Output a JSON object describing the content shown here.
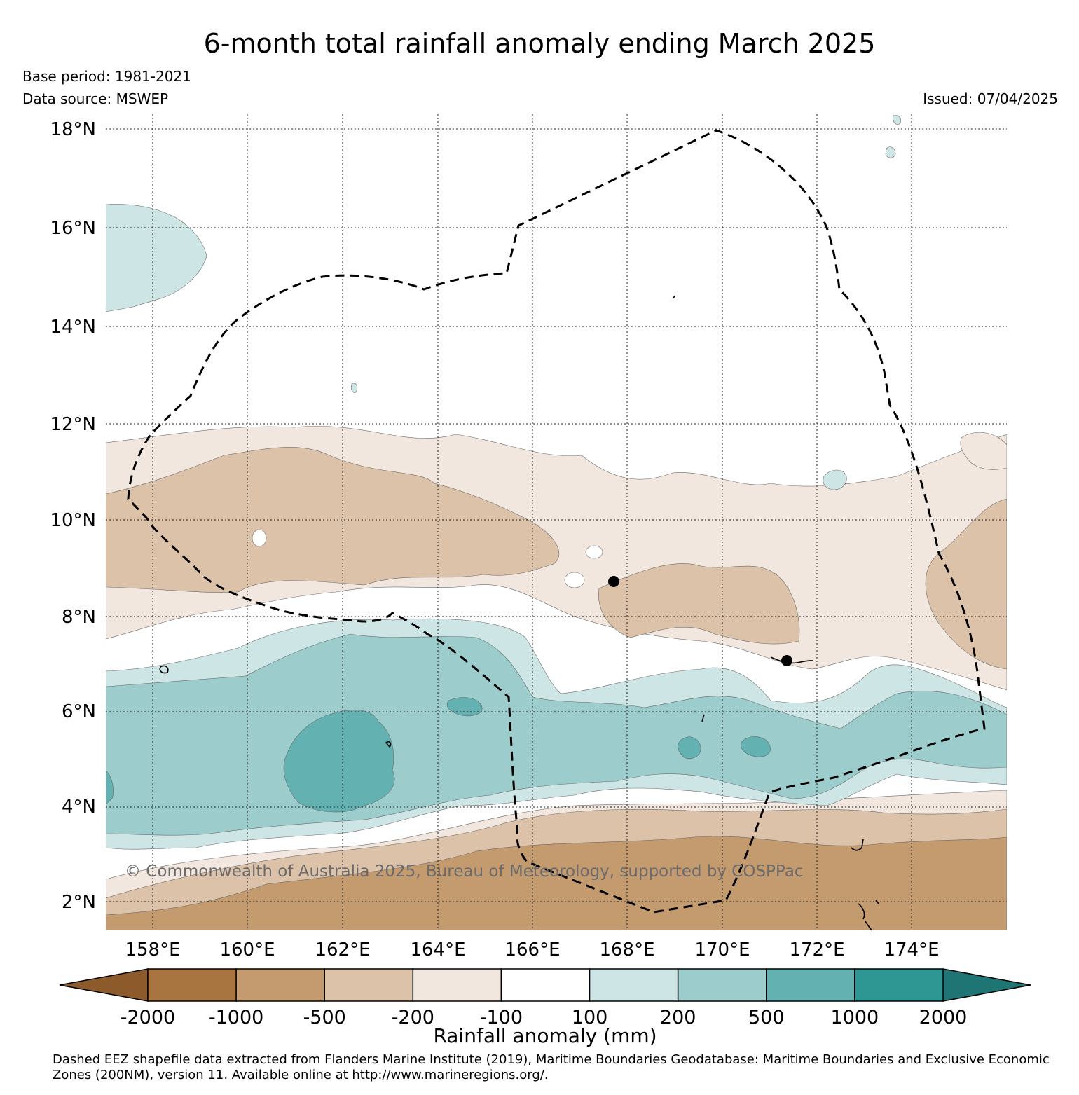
{
  "title": "6-month total rainfall anomaly ending March 2025",
  "base_period": "Base period: 1981-2021",
  "data_source": "Data source: MSWEP",
  "issued": "Issued: 07/04/2025",
  "copyright": "© Commonwealth of Australia 2025, Bureau of Meteorology, supported by COSPPac",
  "latitudes": [
    "18°N",
    "16°N",
    "14°N",
    "12°N",
    "10°N",
    "8°N",
    "6°N",
    "4°N",
    "2°N"
  ],
  "longitudes": [
    "158°E",
    "160°E",
    "162°E",
    "164°E",
    "166°E",
    "168°E",
    "170°E",
    "172°E",
    "174°E"
  ],
  "colorbar": {
    "title": "Rainfall anomaly (mm)",
    "tick_labels": [
      "-2000",
      "-1000",
      "-500",
      "-200",
      "-100",
      "100",
      "200",
      "500",
      "1000",
      "2000"
    ],
    "colors": [
      "#8c5a2b",
      "#a87540",
      "#c49a6f",
      "#dcc2a8",
      "#f1e7de",
      "#ffffff",
      "#cde6e5",
      "#9ccccc",
      "#64b1b1",
      "#2e9793",
      "#1e7574"
    ]
  },
  "credit": "Dashed EEZ shapefile data extracted from Flanders Marine Institute (2019), Maritime Boundaries Geodatabase: Maritime Boundaries and Exclusive Economic Zones (200NM), version 11. Available online at http://www.marineregions.org/."
}
